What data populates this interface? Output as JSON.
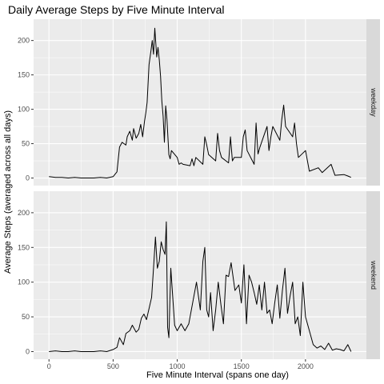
{
  "chart_data": {
    "type": "line",
    "title": "Daily Average Steps by Five Minute Interval",
    "xlabel": "Five Minute Interval (spans one day)",
    "ylabel": "Average Steps (averaged across all days)",
    "xlim": [
      -120,
      2475
    ],
    "ylim": [
      -11,
      231
    ],
    "x_ticks": [
      0,
      500,
      1000,
      1500,
      2000
    ],
    "y_ticks": [
      0,
      50,
      100,
      150,
      200
    ],
    "grid": true,
    "facets": [
      {
        "label": "weekday",
        "x": [
          0,
          50,
          100,
          150,
          200,
          250,
          300,
          350,
          400,
          450,
          500,
          530,
          550,
          570,
          600,
          610,
          630,
          650,
          660,
          680,
          700,
          715,
          730,
          745,
          755,
          765,
          780,
          795,
          805,
          815,
          825,
          835,
          840,
          850,
          860,
          870,
          880,
          890,
          900,
          910,
          920,
          935,
          945,
          955,
          1000,
          1015,
          1030,
          1045,
          1100,
          1115,
          1130,
          1145,
          1200,
          1215,
          1230,
          1245,
          1300,
          1315,
          1330,
          1345,
          1400,
          1415,
          1430,
          1445,
          1500,
          1515,
          1530,
          1545,
          1600,
          1615,
          1630,
          1645,
          1700,
          1715,
          1730,
          1745,
          1800,
          1815,
          1830,
          1845,
          1900,
          1915,
          1930,
          1945,
          2000,
          2030,
          2100,
          2130,
          2200,
          2230,
          2300,
          2330,
          2355
        ],
        "y": [
          2,
          1,
          1,
          0,
          1,
          0,
          0,
          0,
          1,
          0,
          2,
          9,
          45,
          52,
          48,
          60,
          68,
          55,
          72,
          58,
          65,
          78,
          60,
          83,
          95,
          110,
          165,
          185,
          200,
          180,
          218,
          190,
          176,
          190,
          172,
          148,
          112,
          90,
          52,
          105,
          85,
          34,
          28,
          40,
          30,
          20,
          22,
          20,
          18,
          28,
          18,
          30,
          20,
          60,
          48,
          34,
          25,
          65,
          40,
          30,
          22,
          60,
          25,
          30,
          30,
          60,
          70,
          40,
          20,
          80,
          35,
          45,
          75,
          40,
          60,
          75,
          55,
          85,
          106,
          75,
          60,
          80,
          50,
          30,
          40,
          10,
          15,
          8,
          20,
          4,
          5,
          3,
          1
        ]
      },
      {
        "label": "weekend",
        "x": [
          0,
          50,
          100,
          150,
          200,
          250,
          300,
          350,
          400,
          450,
          500,
          530,
          550,
          580,
          600,
          630,
          650,
          680,
          700,
          720,
          740,
          760,
          780,
          800,
          815,
          830,
          845,
          860,
          875,
          890,
          905,
          915,
          925,
          935,
          950,
          980,
          1000,
          1030,
          1060,
          1090,
          1120,
          1150,
          1180,
          1200,
          1215,
          1230,
          1245,
          1260,
          1280,
          1300,
          1320,
          1340,
          1360,
          1380,
          1400,
          1420,
          1450,
          1480,
          1500,
          1520,
          1540,
          1560,
          1580,
          1600,
          1620,
          1640,
          1660,
          1680,
          1700,
          1720,
          1740,
          1760,
          1780,
          1800,
          1820,
          1840,
          1860,
          1880,
          1900,
          1920,
          1940,
          1960,
          1980,
          2000,
          2030,
          2060,
          2090,
          2120,
          2150,
          2180,
          2210,
          2240,
          2270,
          2300,
          2330,
          2355
        ],
        "y": [
          0,
          1,
          0,
          0,
          1,
          0,
          0,
          0,
          1,
          0,
          3,
          6,
          20,
          10,
          26,
          30,
          38,
          28,
          32,
          48,
          54,
          46,
          62,
          78,
          120,
          165,
          120,
          130,
          158,
          147,
          140,
          187,
          35,
          20,
          120,
          38,
          30,
          40,
          30,
          40,
          70,
          100,
          60,
          130,
          150,
          60,
          50,
          85,
          30,
          60,
          100,
          68,
          40,
          110,
          108,
          128,
          88,
          96,
          70,
          125,
          40,
          110,
          100,
          85,
          68,
          96,
          60,
          100,
          55,
          60,
          40,
          70,
          96,
          48,
          88,
          120,
          55,
          80,
          100,
          40,
          50,
          23,
          100,
          50,
          30,
          10,
          5,
          8,
          3,
          12,
          2,
          4,
          3,
          1,
          10,
          0
        ]
      }
    ]
  }
}
